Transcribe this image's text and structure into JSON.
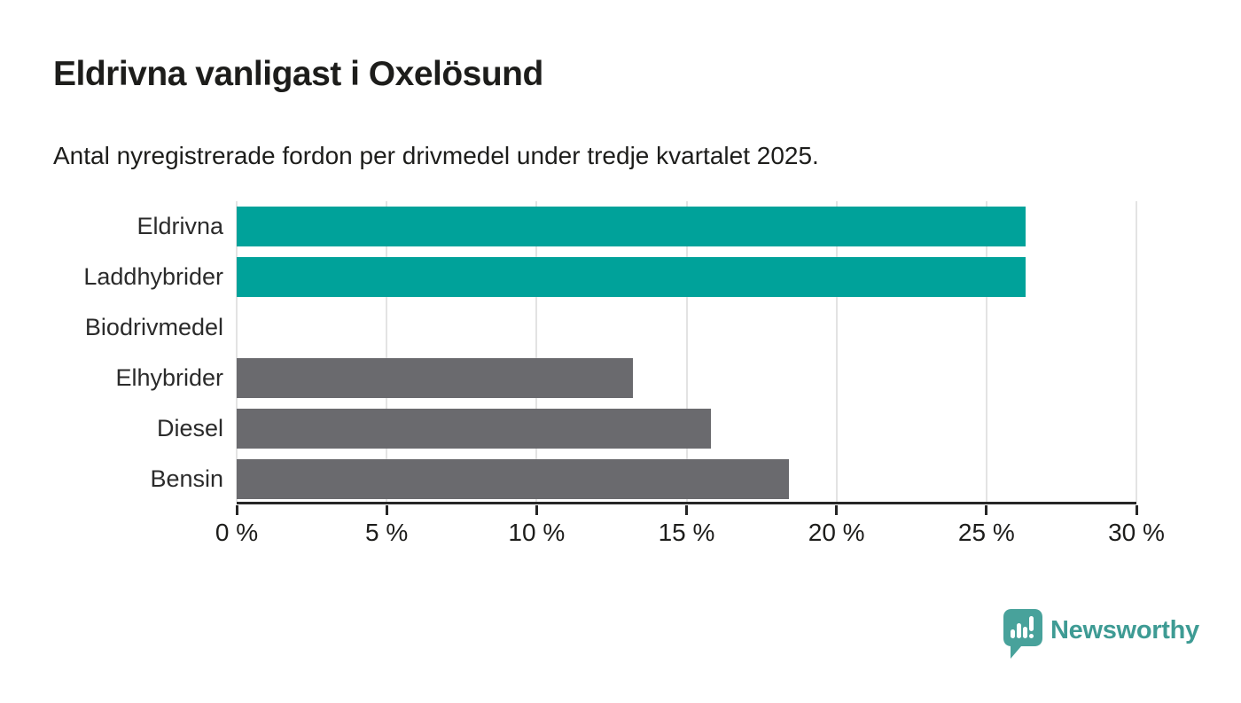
{
  "chart_data": {
    "type": "bar",
    "orientation": "horizontal",
    "title": "Eldrivna vanligast i Oxelösund",
    "subtitle": "Antal nyregistrerade fordon per drivmedel under tredje kvartalet 2025.",
    "categories": [
      "Eldrivna",
      "Laddhybrider",
      "Biodrivmedel",
      "Elhybrider",
      "Diesel",
      "Bensin"
    ],
    "values": [
      26.3,
      26.3,
      0,
      13.2,
      15.8,
      18.4
    ],
    "unit": "%",
    "xlim": [
      0,
      30
    ],
    "xticks": [
      0,
      5,
      10,
      15,
      20,
      25,
      30
    ],
    "xtick_labels": [
      "0 %",
      "5 %",
      "10 %",
      "15 %",
      "20 %",
      "25 %",
      "30 %"
    ],
    "bar_colors": [
      "#00a29a",
      "#00a29a",
      "#6a6a6e",
      "#6a6a6e",
      "#6a6a6e",
      "#6a6a6e"
    ],
    "highlight_color": "#00a29a",
    "default_color": "#6a6a6e",
    "grid": true,
    "gridline_color": "#e3e3e3",
    "axis_color": "#262626",
    "text_color": "#1d1d1b",
    "legend": false,
    "xlabel": "",
    "ylabel": ""
  },
  "footer": {
    "brand": "Newsworthy",
    "brand_color": "#3e9b94",
    "logo_icon": "newsworthy-speech-bubble-bar-chart-icon",
    "logo_mark_color": "#48a29b"
  }
}
